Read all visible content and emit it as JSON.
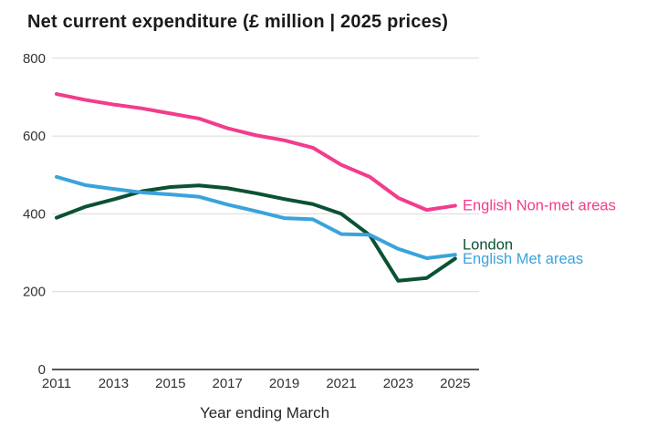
{
  "chart_data": {
    "type": "line",
    "title": "Net current expenditure (£ million | 2025 prices)",
    "xlabel": "Year ending March",
    "x": [
      2011,
      2012,
      2013,
      2014,
      2015,
      2016,
      2017,
      2018,
      2019,
      2020,
      2021,
      2022,
      2023,
      2024,
      2025
    ],
    "xticks": [
      2011,
      2013,
      2015,
      2017,
      2019,
      2021,
      2023,
      2025
    ],
    "yticks": [
      0,
      200,
      400,
      600,
      800
    ],
    "ylim": [
      0,
      800
    ],
    "xlim": [
      2011,
      2025
    ],
    "grid": "horizontal",
    "legend_position": "end-of-line-labels",
    "series": [
      {
        "name": "English Non-met areas",
        "color": "#F23C8C",
        "label_dy": 5,
        "values": [
          708,
          693,
          681,
          671,
          658,
          645,
          620,
          602,
          589,
          570,
          526,
          495,
          441,
          410,
          421
        ]
      },
      {
        "name": "London",
        "color": "#0A5233",
        "label_dy": -10,
        "values": [
          390,
          418,
          437,
          458,
          469,
          473,
          466,
          453,
          438,
          425,
          400,
          345,
          228,
          235,
          285
        ]
      },
      {
        "name": "English Met areas",
        "color": "#3AA3DB",
        "label_dy": 10,
        "values": [
          495,
          474,
          464,
          455,
          450,
          444,
          424,
          407,
          389,
          386,
          348,
          346,
          310,
          286,
          295
        ]
      }
    ]
  },
  "colors": {
    "title": "#1A1A1A",
    "tick_label": "#333333",
    "axis_title": "#262626",
    "gridline": "#DADADA",
    "axis_line": "#1F1F1F",
    "background": "#FFFFFF"
  }
}
